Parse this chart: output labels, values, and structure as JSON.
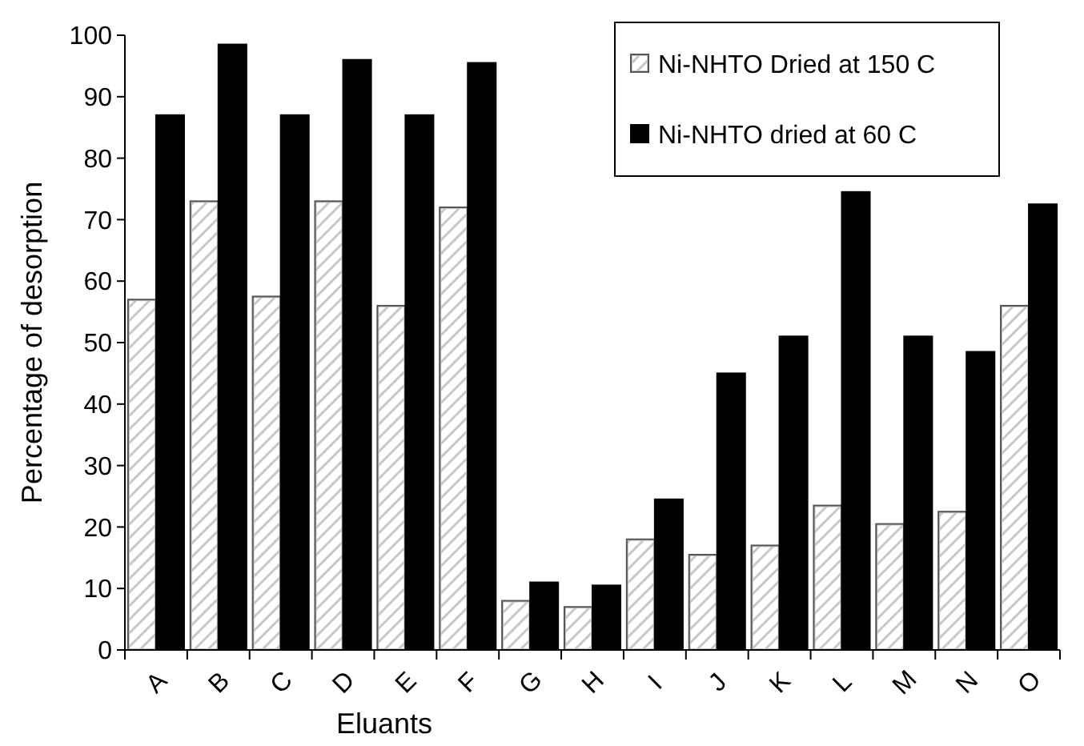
{
  "chart_data": {
    "type": "bar",
    "xlabel": "Eluants",
    "ylabel": "Percentage of desorption",
    "categories": [
      "A",
      "B",
      "C",
      "D",
      "E",
      "F",
      "G",
      "H",
      "I",
      "J",
      "K",
      "L",
      "M",
      "N",
      "O"
    ],
    "series": [
      {
        "name": "Ni-NHTO Dried at 150 C",
        "color": "#c8c8c8",
        "values": [
          57,
          73,
          57.5,
          73,
          56,
          72,
          8,
          7,
          18,
          15.5,
          17,
          23.5,
          20.5,
          22.5,
          56
        ]
      },
      {
        "name": "Ni-NHTO dried at 60 C",
        "color": "#000000",
        "values": [
          87,
          98.5,
          87,
          96,
          87,
          95.5,
          11,
          10.5,
          24.5,
          45,
          51,
          74.5,
          51,
          48.5,
          72.5
        ]
      }
    ],
    "ylim": [
      0,
      100
    ],
    "yticks": [
      0,
      10,
      20,
      30,
      40,
      50,
      60,
      70,
      80,
      90,
      100
    ],
    "grid": false,
    "legend": "top right"
  }
}
